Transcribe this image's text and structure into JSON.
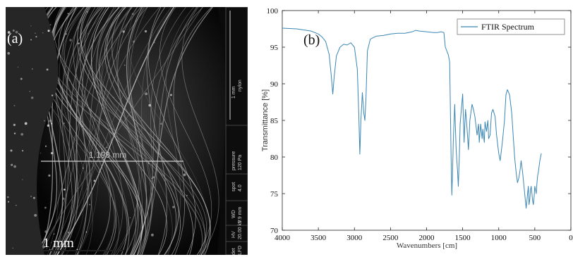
{
  "panel_a": {
    "label": "(a)",
    "scale_label": "1 mm",
    "measure_label": "1.193 mm",
    "info_bar": {
      "scale_text": "1 mm",
      "detector_name": "nylon",
      "pressure_label": "pressure",
      "pressure_value": "120 Pa",
      "spot_label": "spot",
      "spot_value": "4.0",
      "wd_label": "WD",
      "wd_value": "9.9 mm",
      "hv_label": "HV",
      "hv_value": "20.00 kV",
      "det_label": "det",
      "det_value": "LFD"
    }
  },
  "panel_b": {
    "label": "(b)"
  },
  "colors": {
    "spectrum_line": "#3a86b4",
    "axis": "#222222",
    "sem_background": "#0a0a0a"
  },
  "chart_data": {
    "type": "line",
    "title": "",
    "xlabel": "Wavenumbers [cm]",
    "ylabel": "Transmittance [%]",
    "xlim": [
      4000,
      0
    ],
    "ylim": [
      70,
      100
    ],
    "x_reversed": true,
    "grid": false,
    "legend_position": "top-right",
    "x_ticks": [
      4000,
      3500,
      3000,
      2500,
      2000,
      1500,
      1000,
      500,
      0
    ],
    "x_tick_labels": [
      "4000",
      "3500",
      "3000",
      "2500",
      "2000",
      "1500",
      "1000",
      "500",
      "0"
    ],
    "y_ticks": [
      70,
      75,
      80,
      85,
      90,
      95,
      100
    ],
    "y_tick_labels": [
      "70",
      "75",
      "80",
      "85",
      "90",
      "95",
      "100"
    ],
    "series": [
      {
        "name": "FTIR Spectrum",
        "x": [
          4000,
          3800,
          3600,
          3500,
          3450,
          3400,
          3350,
          3320,
          3300,
          3280,
          3250,
          3200,
          3150,
          3100,
          3050,
          3000,
          2960,
          2940,
          2925,
          2910,
          2890,
          2870,
          2855,
          2840,
          2820,
          2780,
          2700,
          2600,
          2500,
          2400,
          2300,
          2200,
          2150,
          2100,
          2000,
          1900,
          1850,
          1800,
          1760,
          1740,
          1700,
          1680,
          1660,
          1650,
          1640,
          1630,
          1610,
          1600,
          1590,
          1570,
          1560,
          1545,
          1535,
          1500,
          1480,
          1470,
          1460,
          1440,
          1420,
          1400,
          1370,
          1350,
          1330,
          1300,
          1280,
          1270,
          1250,
          1230,
          1220,
          1200,
          1190,
          1170,
          1150,
          1140,
          1120,
          1100,
          1080,
          1050,
          1030,
          1000,
          980,
          950,
          920,
          900,
          880,
          850,
          820,
          800,
          780,
          760,
          740,
          720,
          700,
          690,
          670,
          650,
          630,
          620,
          600,
          590,
          580,
          570,
          560,
          550,
          540,
          530,
          520,
          510,
          500,
          490,
          480,
          470,
          460,
          450,
          430,
          410
        ],
        "y": [
          97.6,
          97.5,
          97.2,
          96.8,
          96.4,
          95.8,
          94.0,
          91.0,
          88.6,
          91.0,
          93.8,
          95.0,
          95.4,
          95.3,
          95.6,
          95.0,
          92.0,
          86.0,
          80.4,
          85.0,
          88.8,
          86.0,
          85.0,
          88.0,
          94.5,
          96.1,
          96.5,
          96.6,
          96.8,
          96.9,
          96.9,
          97.1,
          97.3,
          97.2,
          97.1,
          97.0,
          97.0,
          97.1,
          97.0,
          95.0,
          94.0,
          93.0,
          80.0,
          74.8,
          78.0,
          82.0,
          87.2,
          84.0,
          81.0,
          78.0,
          76.0,
          80.5,
          84.5,
          88.6,
          82.0,
          84.5,
          86.5,
          84.0,
          81.0,
          85.0,
          87.2,
          86.5,
          85.5,
          83.0,
          84.5,
          82.0,
          84.5,
          82.5,
          83.8,
          82.0,
          84.8,
          83.5,
          85.0,
          82.5,
          83.0,
          86.0,
          86.5,
          85.5,
          83.0,
          80.5,
          79.5,
          82.0,
          85.0,
          88.5,
          89.2,
          88.5,
          86.0,
          83.0,
          80.0,
          78.0,
          76.5,
          77.2,
          78.5,
          79.5,
          78.0,
          76.0,
          74.0,
          73.0,
          75.0,
          76.0,
          73.5,
          74.2,
          75.5,
          76.0,
          75.0,
          74.0,
          73.5,
          74.5,
          76.0,
          75.5,
          75.0,
          76.5,
          77.5,
          78.0,
          79.5,
          80.5
        ]
      }
    ]
  }
}
